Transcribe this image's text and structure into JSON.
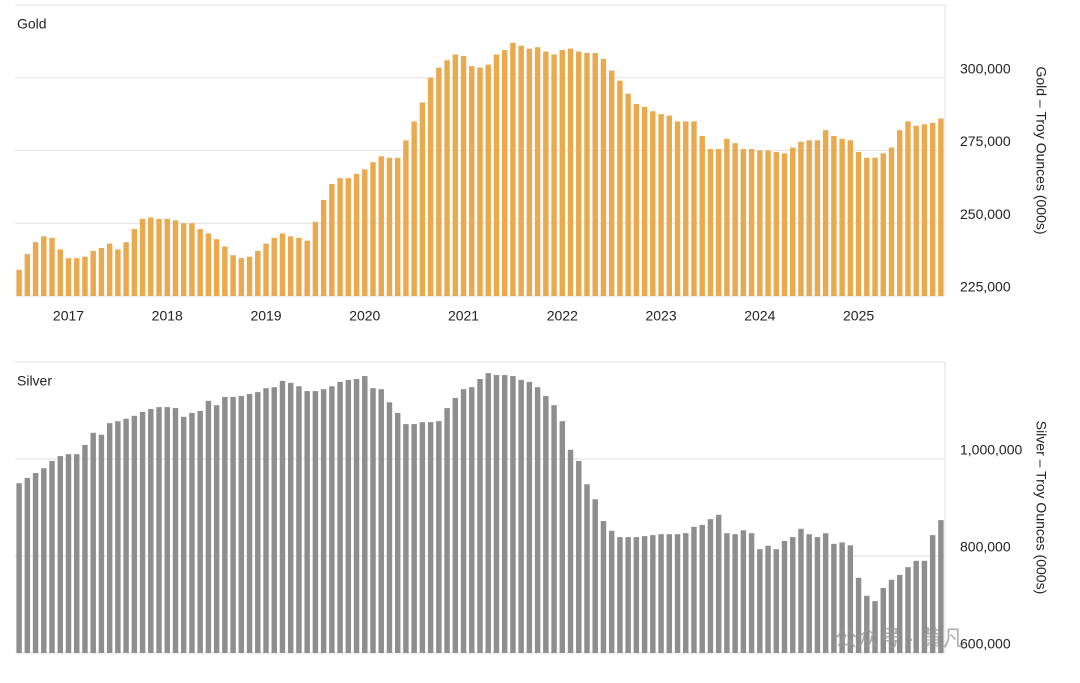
{
  "chart_data": [
    {
      "type": "bar",
      "title": "Gold",
      "y_label": "Gold – Troy Ounces (000s)",
      "color": "#e9a94f",
      "categories": [
        null,
        null,
        null,
        null,
        null,
        null,
        "2017",
        null,
        null,
        null,
        null,
        null,
        null,
        null,
        null,
        null,
        null,
        null,
        "2018",
        null,
        null,
        null,
        null,
        null,
        null,
        null,
        null,
        null,
        null,
        null,
        "2019",
        null,
        null,
        null,
        null,
        null,
        null,
        null,
        null,
        null,
        null,
        null,
        "2020",
        null,
        null,
        null,
        null,
        null,
        null,
        null,
        null,
        null,
        null,
        null,
        "2021",
        null,
        null,
        null,
        null,
        null,
        null,
        null,
        null,
        null,
        null,
        null,
        "2022",
        null,
        null,
        null,
        null,
        null,
        null,
        null,
        null,
        null,
        null,
        null,
        "2023",
        null,
        null,
        null,
        null,
        null,
        null,
        null,
        null,
        null,
        null,
        null,
        "2024",
        null,
        null,
        null,
        null,
        null,
        null,
        null,
        null,
        null,
        null,
        null,
        "2025",
        null,
        null,
        null,
        null,
        null,
        null,
        null,
        null,
        null,
        null
      ],
      "values": [
        234000,
        239400,
        243500,
        245500,
        245000,
        241000,
        238000,
        238000,
        238500,
        240500,
        241500,
        243000,
        241000,
        243500,
        248000,
        251500,
        252000,
        251500,
        251500,
        251000,
        250000,
        250000,
        248000,
        246500,
        244500,
        242000,
        239000,
        238000,
        238500,
        240500,
        243000,
        245000,
        246500,
        245500,
        245000,
        244000,
        250500,
        258000,
        263500,
        265500,
        265500,
        267000,
        268500,
        271000,
        273000,
        272500,
        272500,
        278500,
        285000,
        291500,
        300000,
        303500,
        306000,
        308000,
        307500,
        304000,
        303500,
        304500,
        308000,
        309500,
        312000,
        311000,
        310000,
        310500,
        309000,
        308000,
        309500,
        310000,
        309000,
        308500,
        308500,
        306500,
        302500,
        299000,
        294500,
        291000,
        290000,
        288500,
        287500,
        287000,
        285000,
        285000,
        285000,
        280000,
        275500,
        275500,
        279000,
        277500,
        275500,
        275500,
        275000,
        275000,
        274500,
        274000,
        276000,
        278000,
        278500,
        278500,
        282000,
        280000,
        279000,
        278500,
        274500,
        272500,
        272500,
        274000,
        276000,
        282000,
        285000,
        283500,
        284000,
        284500,
        286000
      ],
      "ylim": [
        225000,
        325000
      ],
      "yticks": [
        {
          "value": 225000,
          "label": "225,000"
        },
        {
          "value": 250000,
          "label": "250,000"
        },
        {
          "value": 275000,
          "label": "275,000"
        },
        {
          "value": 300000,
          "label": "300,000"
        }
      ],
      "grid": true
    },
    {
      "type": "bar",
      "title": "Silver",
      "y_label": "Silver – Troy Ounces (000s)",
      "color": "#8e8e8e",
      "values": [
        950000,
        961000,
        971000,
        981000,
        996000,
        1006000,
        1010000,
        1010000,
        1029000,
        1054000,
        1050000,
        1074000,
        1078000,
        1083000,
        1089000,
        1097000,
        1103000,
        1107000,
        1107000,
        1105000,
        1087000,
        1095000,
        1099000,
        1120000,
        1111000,
        1128000,
        1128000,
        1130000,
        1134000,
        1138000,
        1146000,
        1148000,
        1161000,
        1157000,
        1150000,
        1140000,
        1140000,
        1144000,
        1150000,
        1159000,
        1163000,
        1165000,
        1171000,
        1146000,
        1144000,
        1117000,
        1095000,
        1072000,
        1072000,
        1076000,
        1076000,
        1078000,
        1105000,
        1126000,
        1144000,
        1148000,
        1165000,
        1177000,
        1173000,
        1173000,
        1171000,
        1163000,
        1159000,
        1148000,
        1130000,
        1111000,
        1078000,
        1019000,
        996000,
        948000,
        917000,
        872000,
        852000,
        839000,
        839000,
        839000,
        841000,
        843000,
        845000,
        845000,
        845000,
        847000,
        860000,
        864000,
        876000,
        885000,
        847000,
        845000,
        853000,
        847000,
        814000,
        821000,
        814000,
        831000,
        839000,
        856000,
        845000,
        839000,
        847000,
        825000,
        828000,
        822000,
        755000,
        718000,
        707000,
        734000,
        751000,
        761000,
        777000,
        790000,
        790000,
        843000,
        874000
      ],
      "ylim": [
        600000,
        1200000
      ],
      "yticks": [
        {
          "value": 600000,
          "label": "600,000"
        },
        {
          "value": 800000,
          "label": "800,000"
        },
        {
          "value": 1000000,
          "label": "1,000,000"
        }
      ],
      "grid": true
    }
  ],
  "watermark": "公众号 · 黄凡"
}
